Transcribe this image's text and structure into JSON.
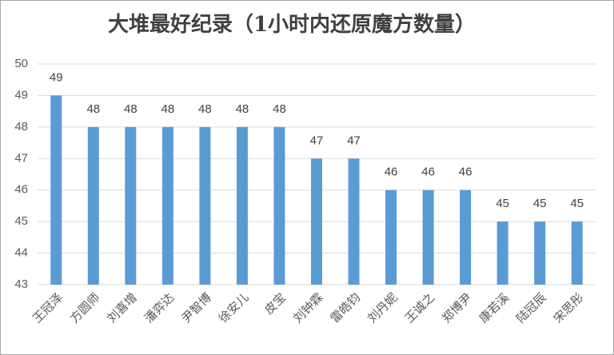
{
  "chart_data": {
    "type": "bar",
    "title": "大堆最好纪录（1小时内还原魔方数量）",
    "categories": [
      "王冠泽",
      "方圆师",
      "刘喜增",
      "潘弈达",
      "尹智博",
      "徐安儿",
      "皮宝",
      "刘钟霖",
      "雷皓钧",
      "刘丹妮",
      "王诚之",
      "郑博尹",
      "康若溪",
      "陆冠辰",
      "宋思彤"
    ],
    "values": [
      49,
      48,
      48,
      48,
      48,
      48,
      48,
      47,
      47,
      46,
      46,
      46,
      45,
      45,
      45
    ],
    "color": "#5b9bd5",
    "ylim": [
      43,
      50
    ],
    "yticks": [
      43,
      44,
      45,
      46,
      47,
      48,
      49,
      50
    ],
    "grid": true
  }
}
